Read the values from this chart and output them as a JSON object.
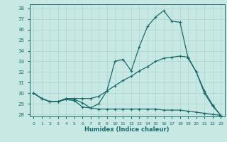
{
  "xlabel": "Humidex (Indice chaleur)",
  "background_color": "#c8e8e4",
  "grid_color": "#b0d8d4",
  "line_color": "#1a6b6b",
  "xlim": [
    -0.5,
    23.5
  ],
  "ylim": [
    27.8,
    38.4
  ],
  "xticks": [
    0,
    1,
    2,
    3,
    4,
    5,
    6,
    7,
    8,
    9,
    10,
    11,
    12,
    13,
    14,
    15,
    16,
    17,
    18,
    19,
    20,
    21,
    22,
    23
  ],
  "yticks": [
    28,
    29,
    30,
    31,
    32,
    33,
    34,
    35,
    36,
    37,
    38
  ],
  "line1_x": [
    0,
    1,
    2,
    3,
    4,
    5,
    6,
    7,
    8,
    9,
    10,
    11,
    12,
    13,
    14,
    15,
    16,
    17,
    18,
    19,
    20,
    21,
    22,
    23
  ],
  "line1_y": [
    30.0,
    29.5,
    29.2,
    29.2,
    29.4,
    29.3,
    28.7,
    28.6,
    29.0,
    30.2,
    33.0,
    33.2,
    32.1,
    34.4,
    36.3,
    37.2,
    37.8,
    36.8,
    36.7,
    33.3,
    32.0,
    30.0,
    28.8,
    27.9
  ],
  "line2_x": [
    0,
    1,
    2,
    3,
    4,
    5,
    6,
    7,
    8,
    9,
    10,
    11,
    12,
    13,
    14,
    15,
    16,
    17,
    18,
    19,
    20,
    21,
    22,
    23
  ],
  "line2_y": [
    30.0,
    29.5,
    29.2,
    29.2,
    29.5,
    29.5,
    29.5,
    29.5,
    29.7,
    30.2,
    30.7,
    31.2,
    31.6,
    32.1,
    32.5,
    33.0,
    33.3,
    33.4,
    33.5,
    33.4,
    32.0,
    30.2,
    28.9,
    27.9
  ],
  "line3_x": [
    0,
    1,
    2,
    3,
    4,
    5,
    6,
    7,
    8,
    9,
    10,
    11,
    12,
    13,
    14,
    15,
    16,
    17,
    18,
    19,
    20,
    21,
    22,
    23
  ],
  "line3_y": [
    30.0,
    29.5,
    29.2,
    29.2,
    29.5,
    29.4,
    29.1,
    28.6,
    28.5,
    28.5,
    28.5,
    28.5,
    28.5,
    28.5,
    28.5,
    28.5,
    28.4,
    28.4,
    28.4,
    28.3,
    28.2,
    28.1,
    28.0,
    27.9
  ]
}
